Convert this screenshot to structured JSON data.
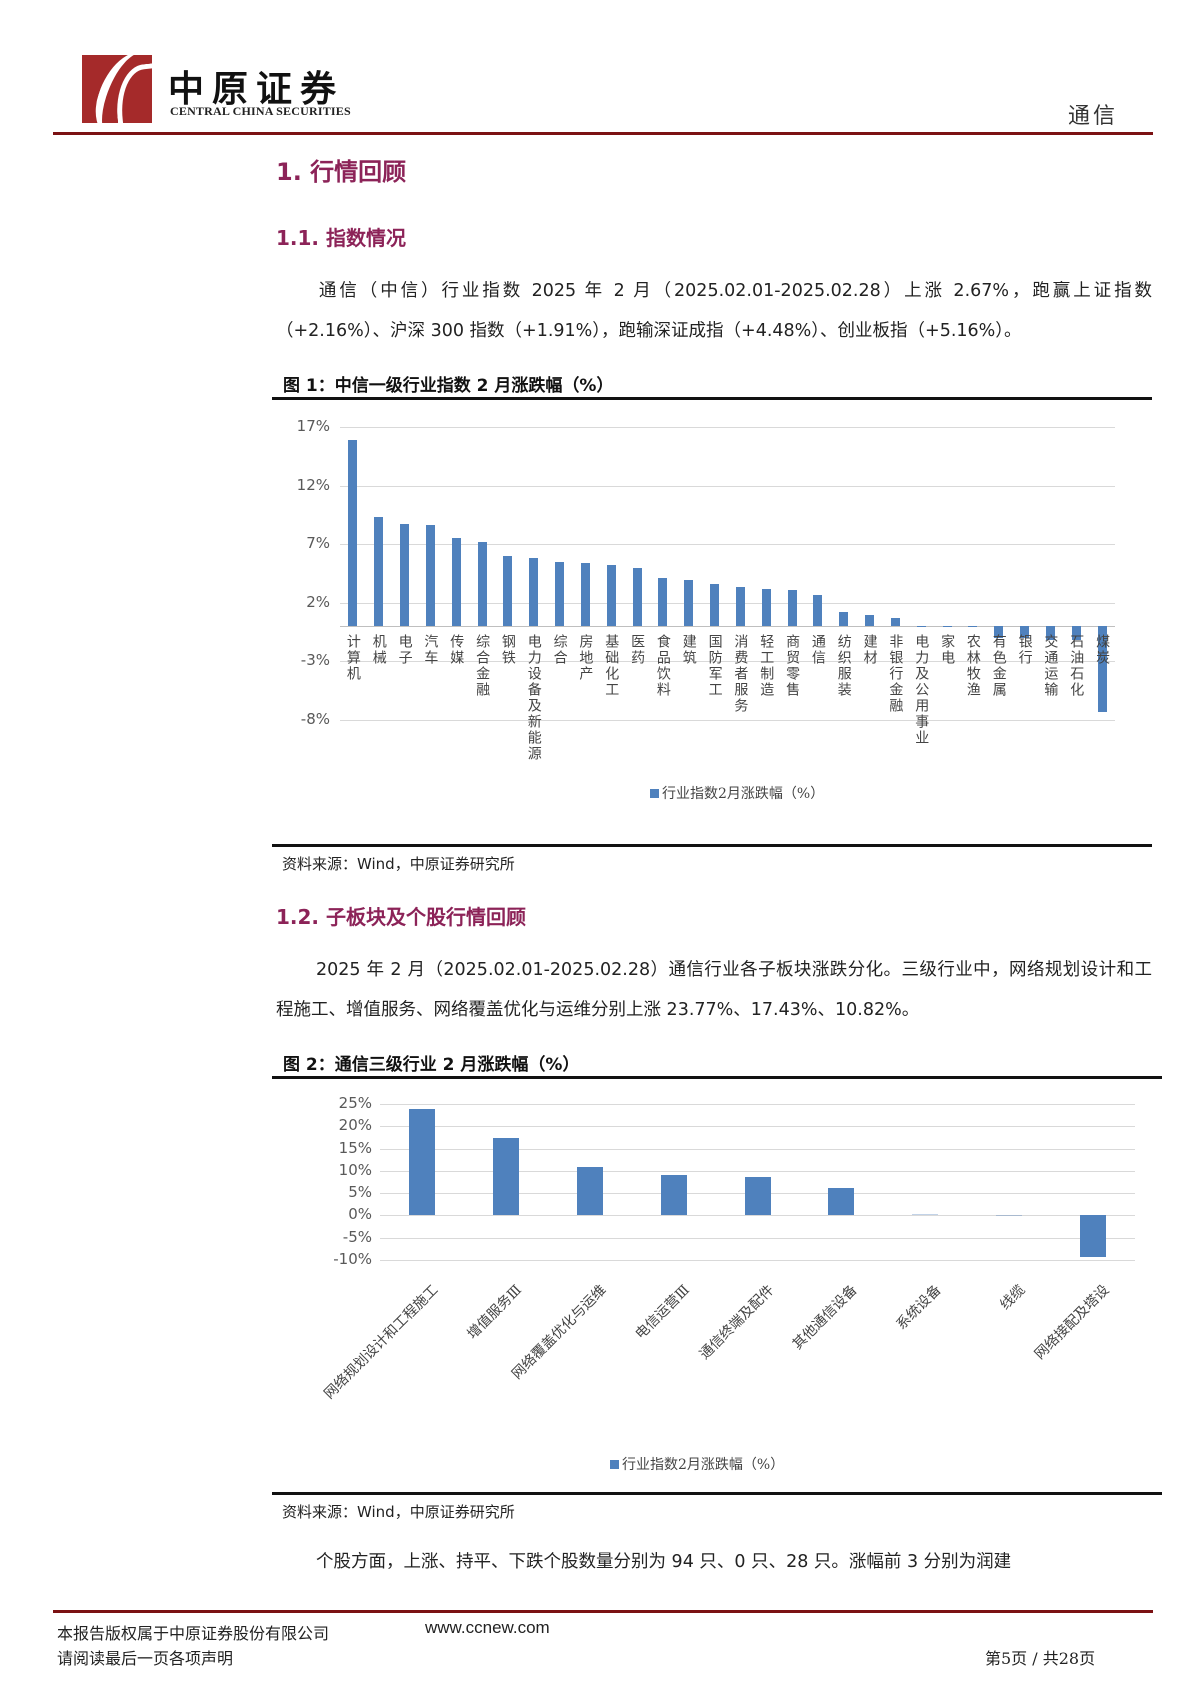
{
  "header": {
    "logo_cn": "中原证券",
    "logo_en": "CENTRAL CHINA SECURITIES",
    "industry": "通信",
    "brand_color": "#7b1113"
  },
  "section1": {
    "title": "1. 行情回顾",
    "sub1": {
      "title": "1.1. 指数情况",
      "paragraph": "通信（中信）行业指数 2025 年 2 月（2025.02.01-2025.02.28）上涨 2.67%，跑赢上证指数（+2.16%）、沪深 300 指数（+1.91%），跑输深证成指（+4.48%）、创业板指（+5.16%）。"
    },
    "sub2": {
      "title": "1.2. 子板块及个股行情回顾",
      "paragraph": "2025 年 2 月（2025.02.01-2025.02.28）通信行业各子板块涨跌分化。三级行业中，网络规划设计和工程施工、增值服务、网络覆盖优化与运维分别上涨 23.77%、17.43%、10.82%。",
      "paragraph2": "个股方面，上涨、持平、下跌个股数量分别为 94 只、0 只、28 只。涨幅前 3 分别为润建"
    }
  },
  "figure1": {
    "title": "图 1：中信一级行业指数 2 月涨跌幅（%）",
    "source": "资料来源：Wind，中原证券研究所"
  },
  "figure2": {
    "title": "图 2：通信三级行业 2 月涨跌幅（%）",
    "source": "资料来源：Wind，中原证券研究所"
  },
  "footer": {
    "copyright": "本报告版权属于中原证券股份有限公司",
    "url": "www.ccnew.com",
    "disclaimer": "请阅读最后一页各项声明",
    "page": "第5页 / 共28页"
  },
  "chart_data": [
    {
      "type": "bar",
      "title": "图 1：中信一级行业指数 2 月涨跌幅（%）",
      "xlabel": "",
      "ylabel": "",
      "ylim": [
        -8,
        17
      ],
      "yticks": [
        "17%",
        "12%",
        "7%",
        "2%",
        "-3%",
        "-8%"
      ],
      "ytick_values": [
        17,
        12,
        7,
        2,
        -3,
        -8
      ],
      "grid": true,
      "legend_position": "bottom",
      "bar_color": "#4f81bd",
      "categories": [
        "计算机",
        "机械",
        "电子",
        "汽车",
        "传媒",
        "综合金融",
        "钢铁",
        "电力设备及新能源",
        "综合",
        "房地产",
        "基础化工",
        "医药",
        "食品饮料",
        "建筑",
        "国防军工",
        "消费者服务",
        "轻工制造",
        "商贸零售",
        "通信",
        "纺织服装",
        "建材",
        "非银行金融",
        "电力及公用事业",
        "家电",
        "农林牧渔",
        "有色金属",
        "银行",
        "交通运输",
        "石油石化",
        "煤炭"
      ],
      "series": [
        {
          "name": "行业指数2月涨跌幅（%）",
          "values": [
            15.85,
            9.32,
            8.75,
            8.64,
            7.53,
            7.22,
            5.97,
            5.8,
            5.45,
            5.37,
            5.23,
            4.94,
            4.15,
            3.95,
            3.64,
            3.35,
            3.18,
            3.1,
            2.67,
            1.22,
            0.94,
            0.71,
            0.02,
            0.01,
            -0.02,
            -0.99,
            -1.02,
            -1.14,
            -1.19,
            -7.33
          ]
        }
      ]
    },
    {
      "type": "bar",
      "title": "图 2：通信三级行业 2 月涨跌幅（%）",
      "xlabel": "",
      "ylabel": "",
      "ylim": [
        -10,
        25
      ],
      "yticks": [
        "25%",
        "20%",
        "15%",
        "10%",
        "5%",
        "0%",
        "-5%",
        "-10%"
      ],
      "ytick_values": [
        25,
        20,
        15,
        10,
        5,
        0,
        -5,
        -10
      ],
      "grid": true,
      "legend_position": "bottom",
      "bar_color": "#4f81bd",
      "categories": [
        "网络规划设计和工程施工",
        "增值服务Ⅲ",
        "网络覆盖优化与运维",
        "电信运营Ⅲ",
        "通信终端及配件",
        "其他通信设备",
        "系统设备",
        "线缆",
        "网络接配及塔设"
      ],
      "series": [
        {
          "name": "行业指数2月涨跌幅（%）",
          "values": [
            23.77,
            17.43,
            10.82,
            9.08,
            8.63,
            6.18,
            0.4,
            0.05,
            -9.38
          ]
        }
      ]
    }
  ]
}
